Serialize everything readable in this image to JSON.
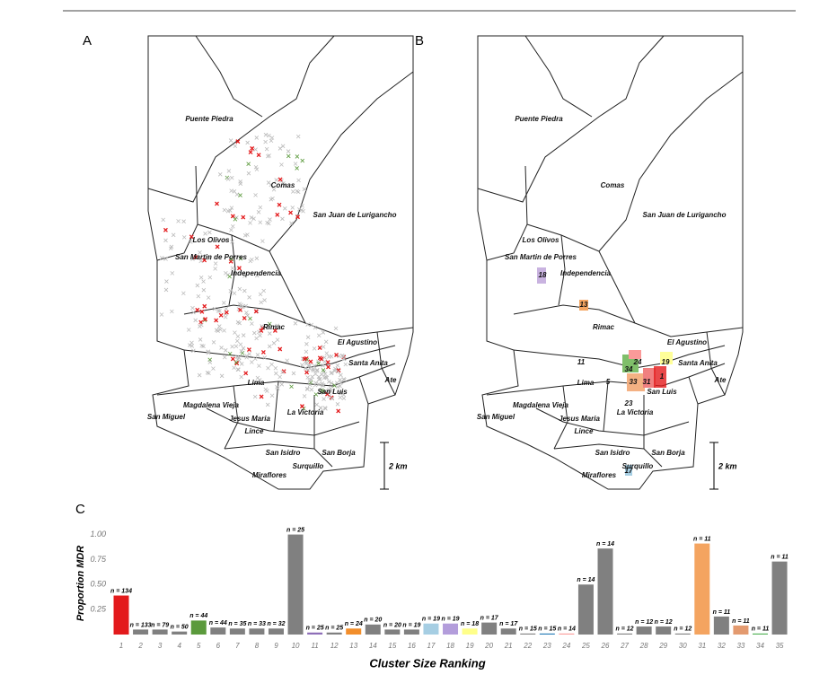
{
  "figure": {
    "panel_labels": [
      "A",
      "B",
      "C"
    ],
    "scale_label": "2 km"
  },
  "maps": {
    "districts": [
      "Puente Piedra",
      "Comas",
      "San Juan de Lurigancho",
      "Los Olivos",
      "San Martin de Porres",
      "Independencia",
      "Rimac",
      "El Agustino",
      "Santa Anita",
      "Ate",
      "Lima",
      "San Luis",
      "Magdalena Vieja",
      "Jesus Maria",
      "La Victoria",
      "San Miguel",
      "Lince",
      "San Isidro",
      "San Borja",
      "Miraflores",
      "Surquillo"
    ],
    "cluster_labels": [
      "18",
      "13",
      "11",
      "5",
      "24",
      "34",
      "19",
      "33",
      "31",
      "1",
      "23",
      "17"
    ]
  },
  "chart_data": {
    "type": "bar",
    "y_label": "Proportion MDR",
    "x_label": "Cluster Size Ranking",
    "categories": [
      "1",
      "2",
      "3",
      "4",
      "5",
      "6",
      "7",
      "8",
      "9",
      "10",
      "11",
      "12",
      "13",
      "14",
      "15",
      "16",
      "17",
      "18",
      "19",
      "20",
      "21",
      "22",
      "23",
      "24",
      "25",
      "26",
      "27",
      "28",
      "29",
      "30",
      "31",
      "32",
      "33",
      "34",
      "35"
    ],
    "values": [
      0.39,
      0.05,
      0.05,
      0.03,
      0.14,
      0.07,
      0.06,
      0.06,
      0.06,
      1.0,
      0.02,
      0.02,
      0.06,
      0.1,
      0.05,
      0.05,
      0.11,
      0.11,
      0.06,
      0.12,
      0.06,
      0.01,
      0.01,
      0.01,
      0.5,
      0.86,
      0.01,
      0.08,
      0.08,
      0.01,
      0.91,
      0.18,
      0.09,
      0.01,
      0.73
    ],
    "n_labels": [
      "n = 134",
      "n = 133",
      "n = 79",
      "n = 50",
      "n = 44",
      "n = 44",
      "n = 35",
      "n = 33",
      "n = 32",
      "n = 25",
      "n = 25",
      "n = 25",
      "n = 24",
      "n = 20",
      "n = 20",
      "n = 19",
      "n = 19",
      "n = 19",
      "n = 18",
      "n = 17",
      "n = 17",
      "n = 15",
      "n = 15",
      "n = 14",
      "n = 14",
      "n = 14",
      "n = 12",
      "n = 12",
      "n = 12",
      "n = 12",
      "n = 11",
      "n = 11",
      "n = 11",
      "n = 11",
      "n = 11"
    ],
    "colors": [
      "#e31a1c",
      "#808080",
      "#808080",
      "#808080",
      "#5b9a3c",
      "#808080",
      "#808080",
      "#808080",
      "#808080",
      "#808080",
      "#8e6fb8",
      "#808080",
      "#f28e2b",
      "#808080",
      "#808080",
      "#808080",
      "#a6cee3",
      "#b39ddb",
      "#ffff8a",
      "#808080",
      "#808080",
      "#808080",
      "#1f78b4",
      "#fb9a99",
      "#808080",
      "#808080",
      "#808080",
      "#808080",
      "#808080",
      "#808080",
      "#f4a460",
      "#808080",
      "#e39a6f",
      "#4caf50",
      "#808080"
    ],
    "ylim": [
      0,
      1.05
    ],
    "yticks": [
      0.25,
      {
        "value": 0.5,
        "label": "0.50"
      },
      0.75,
      {
        "value": 1,
        "label": "1.00"
      }
    ]
  }
}
